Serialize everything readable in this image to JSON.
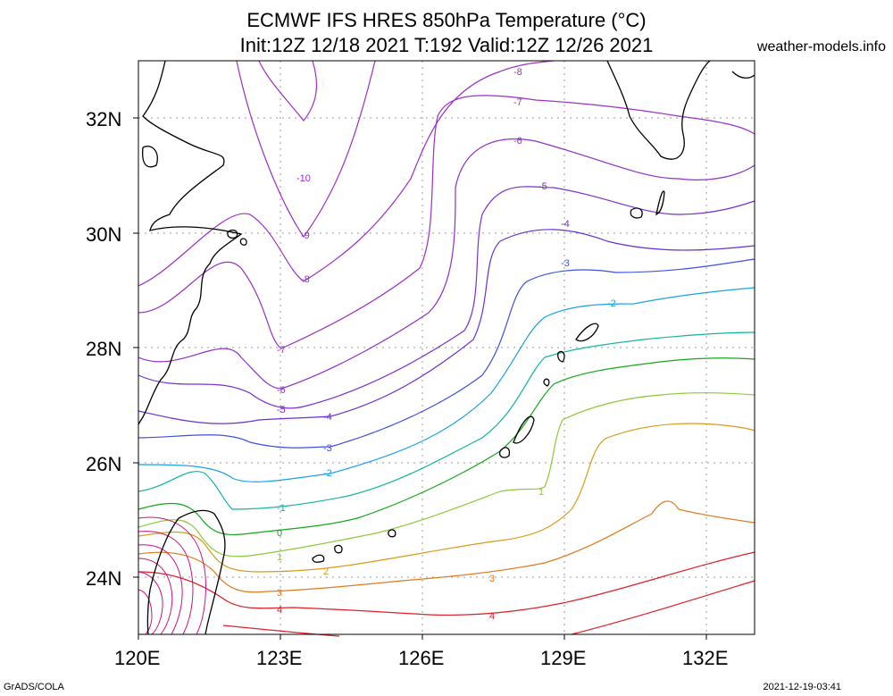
{
  "header": {
    "title_line1": "ECMWF IFS HRES 850hPa Temperature (°C)",
    "title_line2": "Init:12Z 12/18 2021 T:192 Valid:12Z 12/26 2021",
    "site": "weather-models.info"
  },
  "footer": {
    "left": "GrADS/COLA",
    "right": "2021-12-19-03:41"
  },
  "map": {
    "lon_labels": [
      "120E",
      "123E",
      "126E",
      "129E",
      "132E"
    ],
    "lat_labels": [
      "32N",
      "30N",
      "28N",
      "26N",
      "24N"
    ],
    "grid": true,
    "contours": [
      {
        "level": "-10",
        "color": "#9c2fc8"
      },
      {
        "level": "-9",
        "color": "#9c2fc8"
      },
      {
        "level": "-8",
        "color": "#9c2fc8"
      },
      {
        "level": "-7",
        "color": "#9c2fc8"
      },
      {
        "level": "-6",
        "color": "#8f2fcc"
      },
      {
        "level": "-5",
        "color": "#7a2fd0"
      },
      {
        "level": "-4",
        "color": "#6a2fd4"
      },
      {
        "level": "-3",
        "color": "#3c50e0"
      },
      {
        "level": "-2",
        "color": "#1aa0e8"
      },
      {
        "level": "-1",
        "color": "#10b4a0"
      },
      {
        "level": "0",
        "color": "#12a81a"
      },
      {
        "level": "1",
        "color": "#8cc83a"
      },
      {
        "level": "2",
        "color": "#d89a1a"
      },
      {
        "level": "3",
        "color": "#e07a1e"
      },
      {
        "level": "4",
        "color": "#e0202a"
      }
    ]
  }
}
